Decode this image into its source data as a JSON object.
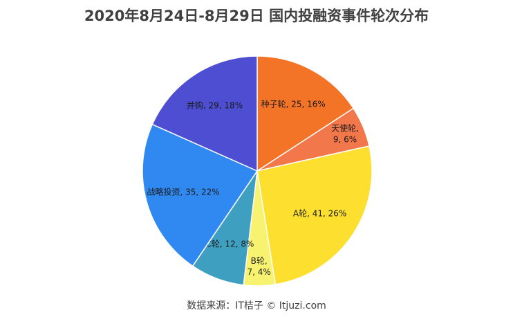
{
  "chart_data": {
    "type": "pie",
    "title": "2020年8月24日-8月29日 国内投融资事件轮次分布",
    "slices": [
      {
        "label": "种子轮, 25, 16%",
        "lines": [
          "种子轮, 25, 16%"
        ],
        "name": "种子轮",
        "value": 25,
        "percent": 16,
        "color": "#F47427"
      },
      {
        "label": "天使轮, 9, 6%",
        "lines": [
          "天使轮,",
          "9, 6%"
        ],
        "name": "天使轮",
        "value": 9,
        "percent": 6,
        "color": "#F2784B"
      },
      {
        "label": "A轮, 41, 26%",
        "lines": [
          "A轮, 41, 26%"
        ],
        "name": "A轮",
        "value": 41,
        "percent": 26,
        "color": "#FDDF2F"
      },
      {
        "label": "B轮, 7, 4%",
        "lines": [
          "B轮,",
          "7, 4%"
        ],
        "name": "B轮",
        "value": 7,
        "percent": 4,
        "color": "#F7F371"
      },
      {
        "label": "C轮, 12, 8%",
        "lines": [
          "C轮, 12, 8%"
        ],
        "name": "C轮",
        "value": 12,
        "percent": 8,
        "color": "#3E9FC0"
      },
      {
        "label": "战略投资, 35, 22%",
        "lines": [
          "战略投资, 35, 22%"
        ],
        "name": "战略投资",
        "value": 35,
        "percent": 22,
        "color": "#3089F0"
      },
      {
        "label": "并购, 29, 18%",
        "lines": [
          "并购, 29, 18%"
        ],
        "name": "并购",
        "value": 29,
        "percent": 18,
        "color": "#4D4ED2"
      }
    ],
    "legend": "none",
    "data_labels": true
  },
  "source": "数据来源：IT桔子 © Itjuzi.com"
}
